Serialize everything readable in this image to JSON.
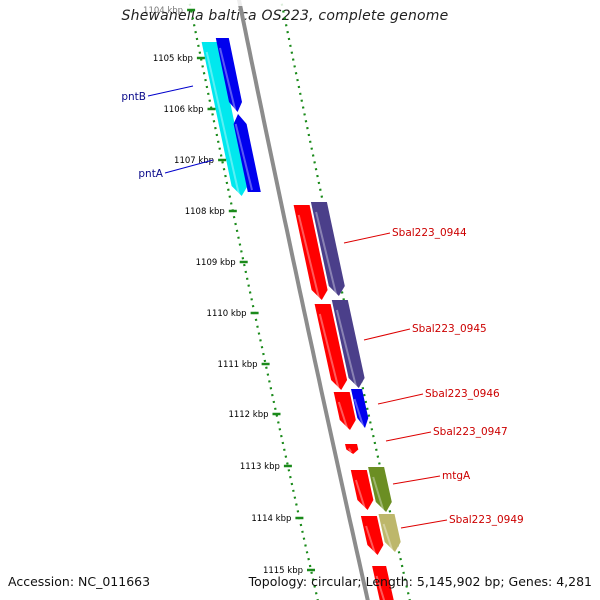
{
  "title": "Shewanella baltica OS223, complete genome",
  "footer": {
    "accession": "Accession: NC_011663",
    "summary": "Topology: circular; Length: 5,145,902 bp; Genes: 4,281"
  },
  "ticks": [
    {
      "label": "1104 kbp"
    },
    {
      "label": "1105 kbp"
    },
    {
      "label": "1106 kbp"
    },
    {
      "label": "1107 kbp"
    },
    {
      "label": "1108 kbp"
    },
    {
      "label": "1109 kbp"
    },
    {
      "label": "1110 kbp"
    },
    {
      "label": "1111 kbp"
    },
    {
      "label": "1112 kbp"
    },
    {
      "label": "1113 kbp"
    },
    {
      "label": "1114 kbp"
    },
    {
      "label": "1115 kbp"
    }
  ],
  "genes": [
    {
      "name": "pntB",
      "color": "#0a0a8a"
    },
    {
      "name": "pntA",
      "color": "#0a0a8a"
    },
    {
      "name": "Sbal223_0944",
      "color": "#cc0000"
    },
    {
      "name": "Sbal223_0945",
      "color": "#cc0000"
    },
    {
      "name": "Sbal223_0946",
      "color": "#cc0000"
    },
    {
      "name": "Sbal223_0947",
      "color": "#cc0000"
    },
    {
      "name": "mtgA",
      "color": "#cc0000"
    },
    {
      "name": "Sbal223_0949",
      "color": "#cc0000"
    }
  ],
  "colors": {
    "backbone": "#8c8c8c",
    "dotted_track": "#1a8a1a",
    "cds_red": "#ff0000",
    "cds_blue": "#0000ee",
    "cds_cyan": "#00e8ee",
    "cds_purple": "#4b3f8a",
    "cds_green": "#6b8e23",
    "cds_khaki": "#bdb76b",
    "label_line_blue": "#0000cc",
    "label_line_red": "#dd0000"
  }
}
